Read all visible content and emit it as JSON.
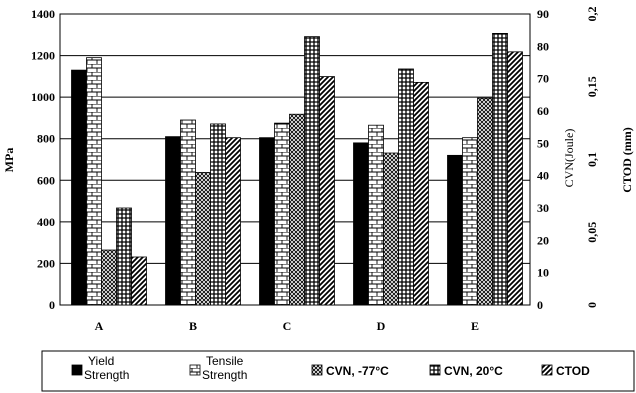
{
  "chart_data": {
    "type": "bar",
    "categories": [
      "A",
      "B",
      "C",
      "D",
      "E"
    ],
    "series": [
      {
        "name": "Yield Strength",
        "axis": "MPa",
        "values": [
          1130,
          810,
          805,
          780,
          720
        ],
        "pattern": "solid-black"
      },
      {
        "name": "Tensile Strength",
        "axis": "MPa",
        "values": [
          1190,
          890,
          875,
          865,
          805
        ],
        "pattern": "brick"
      },
      {
        "name": "CVN, -77°C",
        "axis": "CVN(Joule)",
        "values": [
          17,
          41,
          59,
          47,
          64
        ],
        "pattern": "crosshatch"
      },
      {
        "name": "CVN, 20°C",
        "axis": "CVN(Joule)",
        "values": [
          30,
          56,
          83,
          73,
          84
        ],
        "pattern": "dots"
      },
      {
        "name": "CTOD",
        "axis": "CTOD (mm)",
        "values": [
          0.033,
          0.115,
          0.157,
          0.153,
          0.174
        ],
        "pattern": "diagonal"
      }
    ],
    "axes": {
      "left": {
        "label": "MPa",
        "ylim": [
          0,
          1400
        ],
        "ticks": [
          "0",
          "200",
          "400",
          "600",
          "800",
          "1000",
          "1200",
          "1400"
        ]
      },
      "right1": {
        "label": "CVN(Joule)",
        "ylim": [
          0,
          90
        ],
        "ticks": [
          "0",
          "10",
          "20",
          "30",
          "40",
          "50",
          "60",
          "70",
          "80",
          "90"
        ]
      },
      "right2": {
        "label": "CTOD (mm)",
        "ylim": [
          0,
          0.2
        ],
        "ticks": [
          "0",
          "0,05",
          "0,1",
          "0,15",
          "0,2"
        ]
      }
    },
    "grid": true,
    "legend": {
      "position": "bottom",
      "labels": [
        [
          "Yield",
          "Strength"
        ],
        [
          "Tensile",
          "Strength"
        ],
        [
          "CVN, -77°C"
        ],
        [
          "CVN, 20°C"
        ],
        [
          "CTOD"
        ]
      ]
    }
  }
}
